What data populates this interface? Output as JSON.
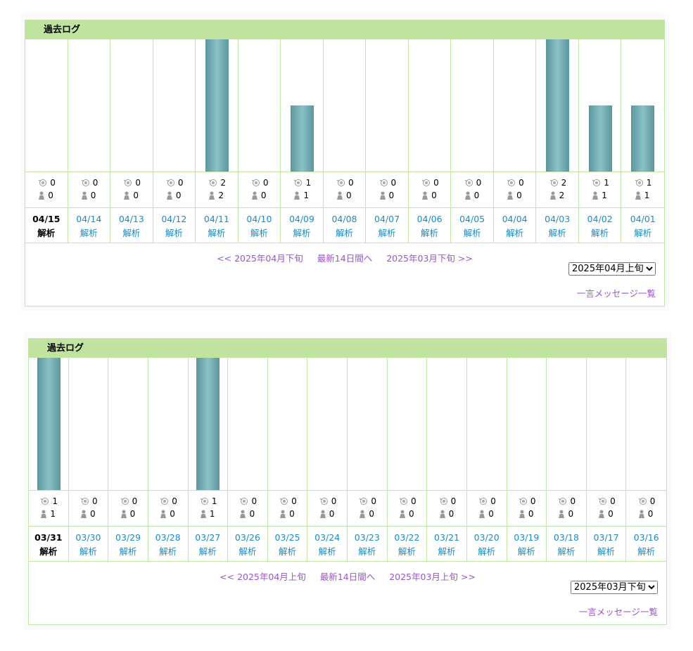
{
  "panels": [
    {
      "title": "過去ログ",
      "columns": [
        {
          "date": "04/15",
          "hits": 0,
          "visitors": 0,
          "link": "解析"
        },
        {
          "date": "04/14",
          "hits": 0,
          "visitors": 0,
          "link": "解析"
        },
        {
          "date": "04/13",
          "hits": 0,
          "visitors": 0,
          "link": "解析"
        },
        {
          "date": "04/12",
          "hits": 0,
          "visitors": 0,
          "link": "解析"
        },
        {
          "date": "04/11",
          "hits": 2,
          "visitors": 2,
          "link": "解析"
        },
        {
          "date": "04/10",
          "hits": 0,
          "visitors": 0,
          "link": "解析"
        },
        {
          "date": "04/09",
          "hits": 1,
          "visitors": 1,
          "link": "解析"
        },
        {
          "date": "04/08",
          "hits": 0,
          "visitors": 0,
          "link": "解析"
        },
        {
          "date": "04/07",
          "hits": 0,
          "visitors": 0,
          "link": "解析"
        },
        {
          "date": "04/06",
          "hits": 0,
          "visitors": 0,
          "link": "解析"
        },
        {
          "date": "04/05",
          "hits": 0,
          "visitors": 0,
          "link": "解析"
        },
        {
          "date": "04/04",
          "hits": 0,
          "visitors": 0,
          "link": "解析"
        },
        {
          "date": "04/03",
          "hits": 2,
          "visitors": 2,
          "link": "解析"
        },
        {
          "date": "04/02",
          "hits": 1,
          "visitors": 1,
          "link": "解析"
        },
        {
          "date": "04/01",
          "hits": 1,
          "visitors": 1,
          "link": "解析"
        }
      ],
      "nav": {
        "prev": "<< 2025年04月下旬",
        "latest": "最新14日間へ",
        "next": "2025年03月下旬 >>"
      },
      "select": "2025年04月上旬",
      "message_link": "一言メッセージ一覧"
    },
    {
      "title": "過去ログ",
      "columns": [
        {
          "date": "03/31",
          "hits": 1,
          "visitors": 1,
          "link": "解析"
        },
        {
          "date": "03/30",
          "hits": 0,
          "visitors": 0,
          "link": "解析"
        },
        {
          "date": "03/29",
          "hits": 0,
          "visitors": 0,
          "link": "解析"
        },
        {
          "date": "03/28",
          "hits": 0,
          "visitors": 0,
          "link": "解析"
        },
        {
          "date": "03/27",
          "hits": 1,
          "visitors": 1,
          "link": "解析"
        },
        {
          "date": "03/26",
          "hits": 0,
          "visitors": 0,
          "link": "解析"
        },
        {
          "date": "03/25",
          "hits": 0,
          "visitors": 0,
          "link": "解析"
        },
        {
          "date": "03/24",
          "hits": 0,
          "visitors": 0,
          "link": "解析"
        },
        {
          "date": "03/23",
          "hits": 0,
          "visitors": 0,
          "link": "解析"
        },
        {
          "date": "03/22",
          "hits": 0,
          "visitors": 0,
          "link": "解析"
        },
        {
          "date": "03/21",
          "hits": 0,
          "visitors": 0,
          "link": "解析"
        },
        {
          "date": "03/20",
          "hits": 0,
          "visitors": 0,
          "link": "解析"
        },
        {
          "date": "03/19",
          "hits": 0,
          "visitors": 0,
          "link": "解析"
        },
        {
          "date": "03/18",
          "hits": 0,
          "visitors": 0,
          "link": "解析"
        },
        {
          "date": "03/17",
          "hits": 0,
          "visitors": 0,
          "link": "解析"
        },
        {
          "date": "03/16",
          "hits": 0,
          "visitors": 0,
          "link": "解析"
        }
      ],
      "nav": {
        "prev": "<< 2025年04月上旬",
        "latest": "最新14日間へ",
        "next": "2025年03月上旬 >>"
      },
      "select": "2025年03月下旬",
      "message_link": "一言メッセージ一覧"
    }
  ]
}
